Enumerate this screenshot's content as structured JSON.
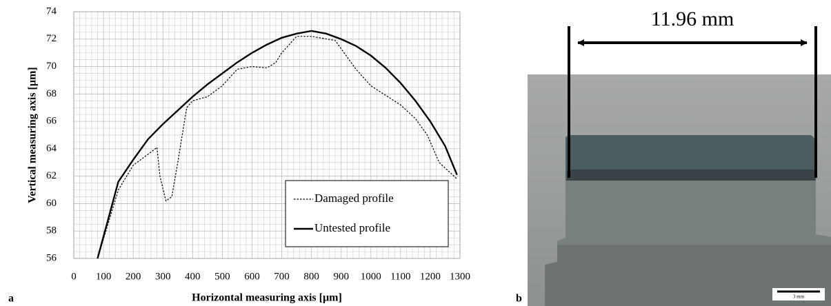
{
  "chart_data": {
    "type": "line",
    "x_label": "Horizontal measuring axis [µm]",
    "y_label": "Vertical measuring axis [µm]",
    "xlim": [
      0,
      1300
    ],
    "xticks": [
      0,
      100,
      200,
      300,
      400,
      500,
      600,
      700,
      800,
      900,
      1000,
      1100,
      1200,
      1300
    ],
    "ylim": [
      56,
      74
    ],
    "yticks": [
      56,
      58,
      60,
      62,
      64,
      66,
      68,
      70,
      72,
      74
    ],
    "grid": true,
    "legend": "lower right",
    "series": [
      {
        "name": "Damaged profile",
        "color": "#000000",
        "linestyle": "dotted",
        "x": [
          80,
          150,
          200,
          250,
          280,
          290,
          310,
          330,
          350,
          380,
          400,
          450,
          500,
          550,
          600,
          650,
          680,
          700,
          750,
          800,
          880,
          950,
          1000,
          1100,
          1150,
          1190,
          1230,
          1290
        ],
        "values": [
          56,
          61,
          62.8,
          63.6,
          64.1,
          62,
          60.2,
          60.5,
          63,
          67,
          67.5,
          67.8,
          68.6,
          69.8,
          70,
          69.9,
          70.3,
          71,
          72.2,
          72.2,
          71.9,
          69.8,
          68.6,
          67.2,
          66.2,
          65,
          63,
          61.8
        ]
      },
      {
        "name": "Untested profile",
        "color": "#000000",
        "linestyle": "solid",
        "x": [
          80,
          100,
          150,
          200,
          250,
          300,
          350,
          400,
          450,
          500,
          550,
          600,
          650,
          700,
          750,
          800,
          850,
          900,
          950,
          1000,
          1050,
          1100,
          1150,
          1200,
          1250,
          1290
        ],
        "values": [
          56,
          57.6,
          61.6,
          63.2,
          64.7,
          65.8,
          66.8,
          67.8,
          68.7,
          69.5,
          70.3,
          71,
          71.6,
          72.1,
          72.4,
          72.6,
          72.4,
          72,
          71.5,
          70.8,
          69.9,
          68.8,
          67.5,
          66,
          64.2,
          62.1
        ]
      }
    ]
  },
  "figure": {
    "panel_labels": [
      "a",
      "b"
    ],
    "photo": {
      "dimension": "11.96 mm",
      "scale_bar": "3 mm"
    }
  }
}
